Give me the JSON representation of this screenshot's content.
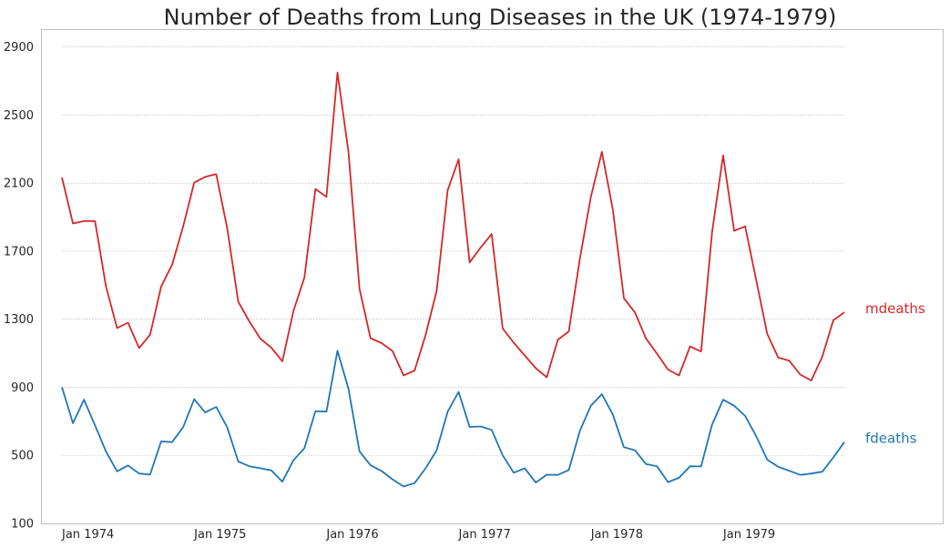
{
  "chart_data": {
    "type": "line",
    "title": "Number of Deaths from Lung Diseases in the UK (1974-1979)",
    "xlabel": "",
    "ylabel": "",
    "ylim": [
      100,
      3000
    ],
    "grid": "horizontal dotted",
    "x_tick_labels": [
      "Jan 1974",
      "Jan 1975",
      "Jan 1976",
      "Jan 1977",
      "Jan 1978",
      "Jan 1979"
    ],
    "y_ticks": [
      100,
      500,
      900,
      1300,
      1700,
      2100,
      2500,
      2900
    ],
    "x": [
      "1974-01",
      "1974-02",
      "1974-03",
      "1974-04",
      "1974-05",
      "1974-06",
      "1974-07",
      "1974-08",
      "1974-09",
      "1974-10",
      "1974-11",
      "1974-12",
      "1975-01",
      "1975-02",
      "1975-03",
      "1975-04",
      "1975-05",
      "1975-06",
      "1975-07",
      "1975-08",
      "1975-09",
      "1975-10",
      "1975-11",
      "1975-12",
      "1976-01",
      "1976-02",
      "1976-03",
      "1976-04",
      "1976-05",
      "1976-06",
      "1976-07",
      "1976-08",
      "1976-09",
      "1976-10",
      "1976-11",
      "1976-12",
      "1977-01",
      "1977-02",
      "1977-03",
      "1977-04",
      "1977-05",
      "1977-06",
      "1977-07",
      "1977-08",
      "1977-09",
      "1977-10",
      "1977-11",
      "1977-12",
      "1978-01",
      "1978-02",
      "1978-03",
      "1978-04",
      "1978-05",
      "1978-06",
      "1978-07",
      "1978-08",
      "1978-09",
      "1978-10",
      "1978-11",
      "1978-12",
      "1979-01",
      "1979-02",
      "1979-03",
      "1979-04",
      "1979-05",
      "1979-06",
      "1979-07",
      "1979-08",
      "1979-09",
      "1979-10",
      "1979-11",
      "1979-12"
    ],
    "series": [
      {
        "name": "mdeaths",
        "color": "#d62728",
        "values": [
          2134,
          1863,
          1877,
          1877,
          1492,
          1249,
          1280,
          1131,
          1209,
          1492,
          1621,
          1846,
          2103,
          2137,
          2153,
          1833,
          1403,
          1288,
          1186,
          1133,
          1053,
          1347,
          1545,
          2066,
          2020,
          2750,
          2283,
          1479,
          1189,
          1160,
          1113,
          970,
          999,
          1208,
          1467,
          2059,
          2240,
          1634,
          1722,
          1801,
          1246,
          1162,
          1087,
          1013,
          959,
          1179,
          1229,
          1655,
          2019,
          2284,
          1942,
          1423,
          1340,
          1187,
          1098,
          1004,
          970,
          1140,
          1110,
          1812,
          2263,
          1820,
          1846,
          1531,
          1215,
          1075,
          1056,
          975,
          940,
          1081,
          1294,
          1341
        ]
      },
      {
        "name": "fdeaths",
        "color": "#1f77b4",
        "values": [
          901,
          689,
          827,
          677,
          522,
          406,
          441,
          393,
          387,
          582,
          578,
          666,
          830,
          752,
          785,
          664,
          464,
          436,
          424,
          412,
          345,
          471,
          542,
          760,
          757,
          1115,
          891,
          524,
          442,
          408,
          359,
          317,
          337,
          424,
          530,
          757,
          873,
          667,
          670,
          650,
          500,
          398,
          424,
          340,
          386,
          385,
          414,
          643,
          792,
          860,
          739,
          548,
          530,
          449,
          436,
          343,
          368,
          436,
          435,
          681,
          827,
          792,
          732,
          613,
          475,
          433,
          409,
          385,
          393,
          404,
          488,
          578
        ]
      }
    ]
  }
}
